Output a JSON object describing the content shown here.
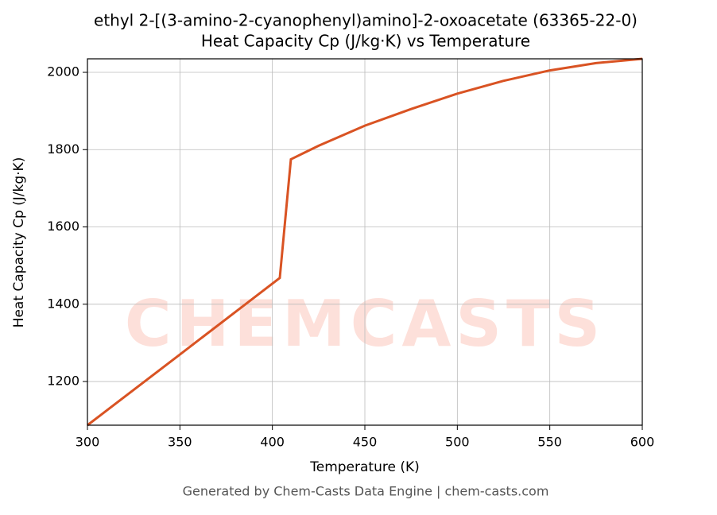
{
  "chart_data": {
    "type": "line",
    "title": "ethyl 2-[(3-amino-2-cyanophenyl)amino]-2-oxoacetate (63365-22-0)",
    "subtitle": "Heat Capacity Cp (J/kg·K) vs Temperature",
    "x_label": "Temperature (K)",
    "y_label": "Heat Capacity Cp (J/kg·K)",
    "watermark": "CHEMCASTS",
    "footer": "Generated by Chem-Casts Data Engine | chem-casts.com",
    "x": [
      300,
      350,
      404,
      410,
      425,
      450,
      475,
      500,
      525,
      550,
      575,
      600
    ],
    "series": [
      {
        "name": "Cp",
        "color": "#d95323",
        "values": [
          1087,
          1270,
          1468,
          1775,
          1810,
          1862,
          1905,
          1945,
          1978,
          2005,
          2024,
          2035
        ]
      }
    ],
    "xlim": [
      300,
      600
    ],
    "xticks": [
      300,
      350,
      400,
      450,
      500,
      550,
      600
    ],
    "ylim": [
      1087,
      2035
    ],
    "yticks": [
      1200,
      1400,
      1600,
      1800,
      2000
    ],
    "grid": true
  }
}
